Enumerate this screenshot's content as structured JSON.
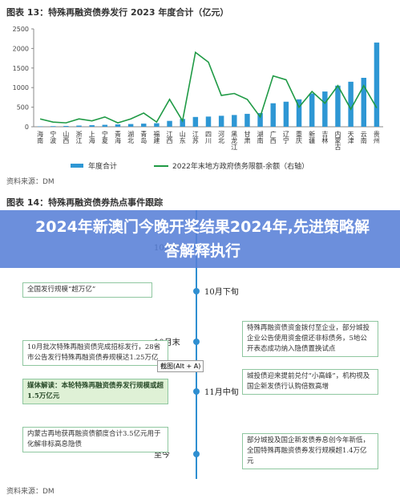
{
  "chart_data": {
    "type": "bar",
    "title": "图表 13：特殊再融资债券发行 2023 年度合计（亿元）",
    "categories": [
      "海南",
      "宁波",
      "山西",
      "浙江",
      "上海",
      "宁夏",
      "青海",
      "湖北",
      "青岛",
      "福建",
      "江西",
      "山东",
      "江苏",
      "四川",
      "河北",
      "黑龙江",
      "甘肃",
      "湖南",
      "广西",
      "辽宁",
      "重庆",
      "新疆",
      "吉林",
      "内蒙古",
      "天津",
      "云南",
      "贵州"
    ],
    "series": [
      {
        "name": "年度合计",
        "color": "#2e97d4",
        "values": [
          10,
          15,
          20,
          30,
          40,
          50,
          60,
          70,
          80,
          90,
          150,
          200,
          250,
          260,
          280,
          300,
          330,
          350,
          600,
          640,
          700,
          850,
          900,
          1050,
          1150,
          1250,
          2150
        ]
      },
      {
        "name": "2022年末地方政府债务限额-余额（右轴）",
        "color": "#1f9a45",
        "values": [
          200,
          120,
          100,
          200,
          150,
          250,
          100,
          200,
          350,
          120,
          700,
          150,
          1900,
          1650,
          800,
          850,
          700,
          250,
          1300,
          1200,
          500,
          900,
          600,
          1050,
          450,
          1050,
          480
        ]
      }
    ],
    "ylim": [
      0,
      2500
    ],
    "yticks": [
      0,
      500,
      1000,
      1500,
      2000,
      2500
    ]
  },
  "source1": "资料来源：DM",
  "figure14": {
    "title": "图表 14：特殊再融资债券热点事件跟踪",
    "dates": [
      "10月初",
      "10月下旬",
      "10月末",
      "11月中旬",
      "至今"
    ],
    "left": [
      "全国发行规模“超万亿”",
      "10月批次特殊再融资债完成招标发行，28省市公告发行特殊再融资债券规模达1.25万亿",
      "媒体解读：本轮特殊再融资债券发行规模或超1.5万亿元",
      "内蒙古再地获再融资债额度合计3.5亿元用于化解非标高息隐债"
    ],
    "right": [
      "特殊再融资债资金拨付至企业，部分城投企业公告使用资金偿还非标债务，5地公开表态成功纳入隐债置换试点",
      "城投债迎来提前兑付“小高峰”，机构视及国企新发债行认购倍数高增",
      "部分城投及国企新发债券息创今年新低，全国特殊再融资债券发行规模超1.4万亿元"
    ]
  },
  "tooltip": "截图(Alt + A)",
  "banner": "2024年新澳门今晚开奖结果2024年,先进策略解答解释执行",
  "source2": "资料来源：DM"
}
